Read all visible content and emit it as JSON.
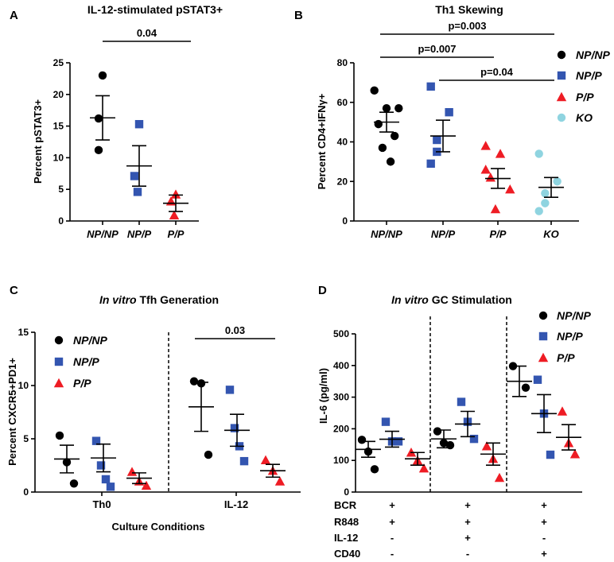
{
  "colors": {
    "NP/NP": "#000000",
    "NP/P": "#3355b0",
    "P/P": "#ee1c24",
    "KO": "#8fd4e0"
  },
  "chart_data": [
    {
      "panel": "A",
      "type": "scatter",
      "title": "IL-12-stimulated pSTAT3+",
      "ylabel": "Percent pSTAT3+",
      "xlabel": "",
      "ylim": [
        0,
        25
      ],
      "yticks": [
        "0",
        "5",
        "10",
        "15",
        "20",
        "25"
      ],
      "categories": [
        "NP/NP",
        "NP/P",
        "P/P"
      ],
      "markers": [
        "circle",
        "square",
        "triangle"
      ],
      "points": [
        [
          23,
          16.2,
          11.2
        ],
        [
          15.3,
          7.1,
          4.6
        ],
        [
          4.2,
          3.1,
          0.9
        ]
      ],
      "means": [
        16.3,
        8.7,
        2.8
      ],
      "sem": [
        3.5,
        3.2,
        1.3
      ],
      "significance": [
        {
          "label": "0.04",
          "from": 0,
          "to": 2
        }
      ]
    },
    {
      "panel": "B",
      "type": "scatter",
      "title": "Th1 Skewing",
      "ylabel": "Percent CD4+IFNγ+",
      "xlabel": "",
      "ylim": [
        0,
        80
      ],
      "yticks": [
        "0",
        "20",
        "40",
        "60",
        "80"
      ],
      "categories": [
        "NP/NP",
        "NP/P",
        "P/P",
        "KO"
      ],
      "markers": [
        "circle",
        "square",
        "triangle",
        "circle"
      ],
      "points": [
        [
          66,
          57,
          57,
          49,
          43,
          37,
          30
        ],
        [
          68,
          55,
          41,
          35,
          29
        ],
        [
          38,
          34,
          26,
          22,
          16,
          6
        ],
        [
          34,
          20,
          14,
          9,
          5
        ]
      ],
      "means": [
        50,
        43,
        21.5,
        17
      ],
      "sem": [
        5,
        8,
        5,
        5
      ],
      "legend": [
        "NP/NP",
        "NP/P",
        "P/P",
        "KO"
      ],
      "significance": [
        {
          "label": "p=0.003",
          "from": 0,
          "to": 3
        },
        {
          "label": "p=0.007",
          "from": 0,
          "to": 2
        },
        {
          "label": "p=0.04",
          "from": 1,
          "to": 3
        }
      ]
    },
    {
      "panel": "C",
      "type": "scatter",
      "title_italic": "In vitro",
      "title_rest": " Tfh Generation",
      "ylabel": "Percent CXCR5+PD1+",
      "xlabel": "Culture Conditions",
      "ylim": [
        0,
        15
      ],
      "yticks": [
        "0",
        "5",
        "10",
        "15"
      ],
      "groups": [
        "Th0",
        "IL-12"
      ],
      "series_names": [
        "NP/NP",
        "NP/P",
        "P/P"
      ],
      "markers": [
        "circle",
        "square",
        "triangle"
      ],
      "points": [
        [
          [
            5.3,
            2.8,
            0.8
          ],
          [
            4.8,
            2.5,
            1.2,
            0.5
          ],
          [
            1.9,
            1.0,
            0.6
          ]
        ],
        [
          [
            10.4,
            10.2,
            3.5
          ],
          [
            9.6,
            6.0,
            4.3,
            2.9
          ],
          [
            3.0,
            2.0,
            1.0
          ]
        ]
      ],
      "means": [
        [
          3.1,
          3.2,
          1.3
        ],
        [
          8.0,
          5.8,
          2.0
        ]
      ],
      "sem": [
        [
          1.3,
          1.3,
          0.5
        ],
        [
          2.3,
          1.5,
          0.6
        ]
      ],
      "legend": [
        "NP/NP",
        "NP/P",
        "P/P"
      ],
      "significance": [
        {
          "label": "0.03",
          "group": 1,
          "from": 0,
          "to": 2
        }
      ]
    },
    {
      "panel": "D",
      "type": "scatter",
      "title_italic": "In vitro",
      "title_rest": " GC Stimulation",
      "ylabel": "IL-6 (pg/ml)",
      "xlabel": "",
      "ylim": [
        0,
        500
      ],
      "yticks": [
        "0",
        "100",
        "200",
        "300",
        "400",
        "500"
      ],
      "series_names": [
        "NP/NP",
        "NP/P",
        "P/P"
      ],
      "markers": [
        "circle",
        "square",
        "triangle"
      ],
      "points": [
        [
          [
            165,
            128,
            72
          ],
          [
            222,
            160,
            160
          ],
          [
            125,
            100,
            75
          ]
        ],
        [
          [
            192,
            155,
            148
          ],
          [
            285,
            222,
            168
          ],
          [
            145,
            105,
            45
          ]
        ],
        [
          [
            398,
            330
          ],
          [
            355,
            248,
            118
          ],
          [
            255,
            155,
            120
          ]
        ]
      ],
      "means": [
        [
          135,
          167,
          105
        ],
        [
          168,
          215,
          120
        ],
        [
          350,
          248,
          173
        ]
      ],
      "sem": [
        [
          25,
          25,
          20
        ],
        [
          28,
          40,
          35
        ],
        [
          48,
          60,
          40
        ]
      ],
      "legend": [
        "NP/NP",
        "NP/P",
        "P/P"
      ],
      "conditions": [
        {
          "name": "BCR",
          "values": [
            "+",
            "+",
            "+"
          ]
        },
        {
          "name": "R848",
          "values": [
            "+",
            "+",
            "+"
          ]
        },
        {
          "name": "IL-12",
          "values": [
            "-",
            "+",
            "-"
          ]
        },
        {
          "name": "CD40",
          "values": [
            "-",
            "-",
            "+"
          ]
        }
      ]
    }
  ]
}
